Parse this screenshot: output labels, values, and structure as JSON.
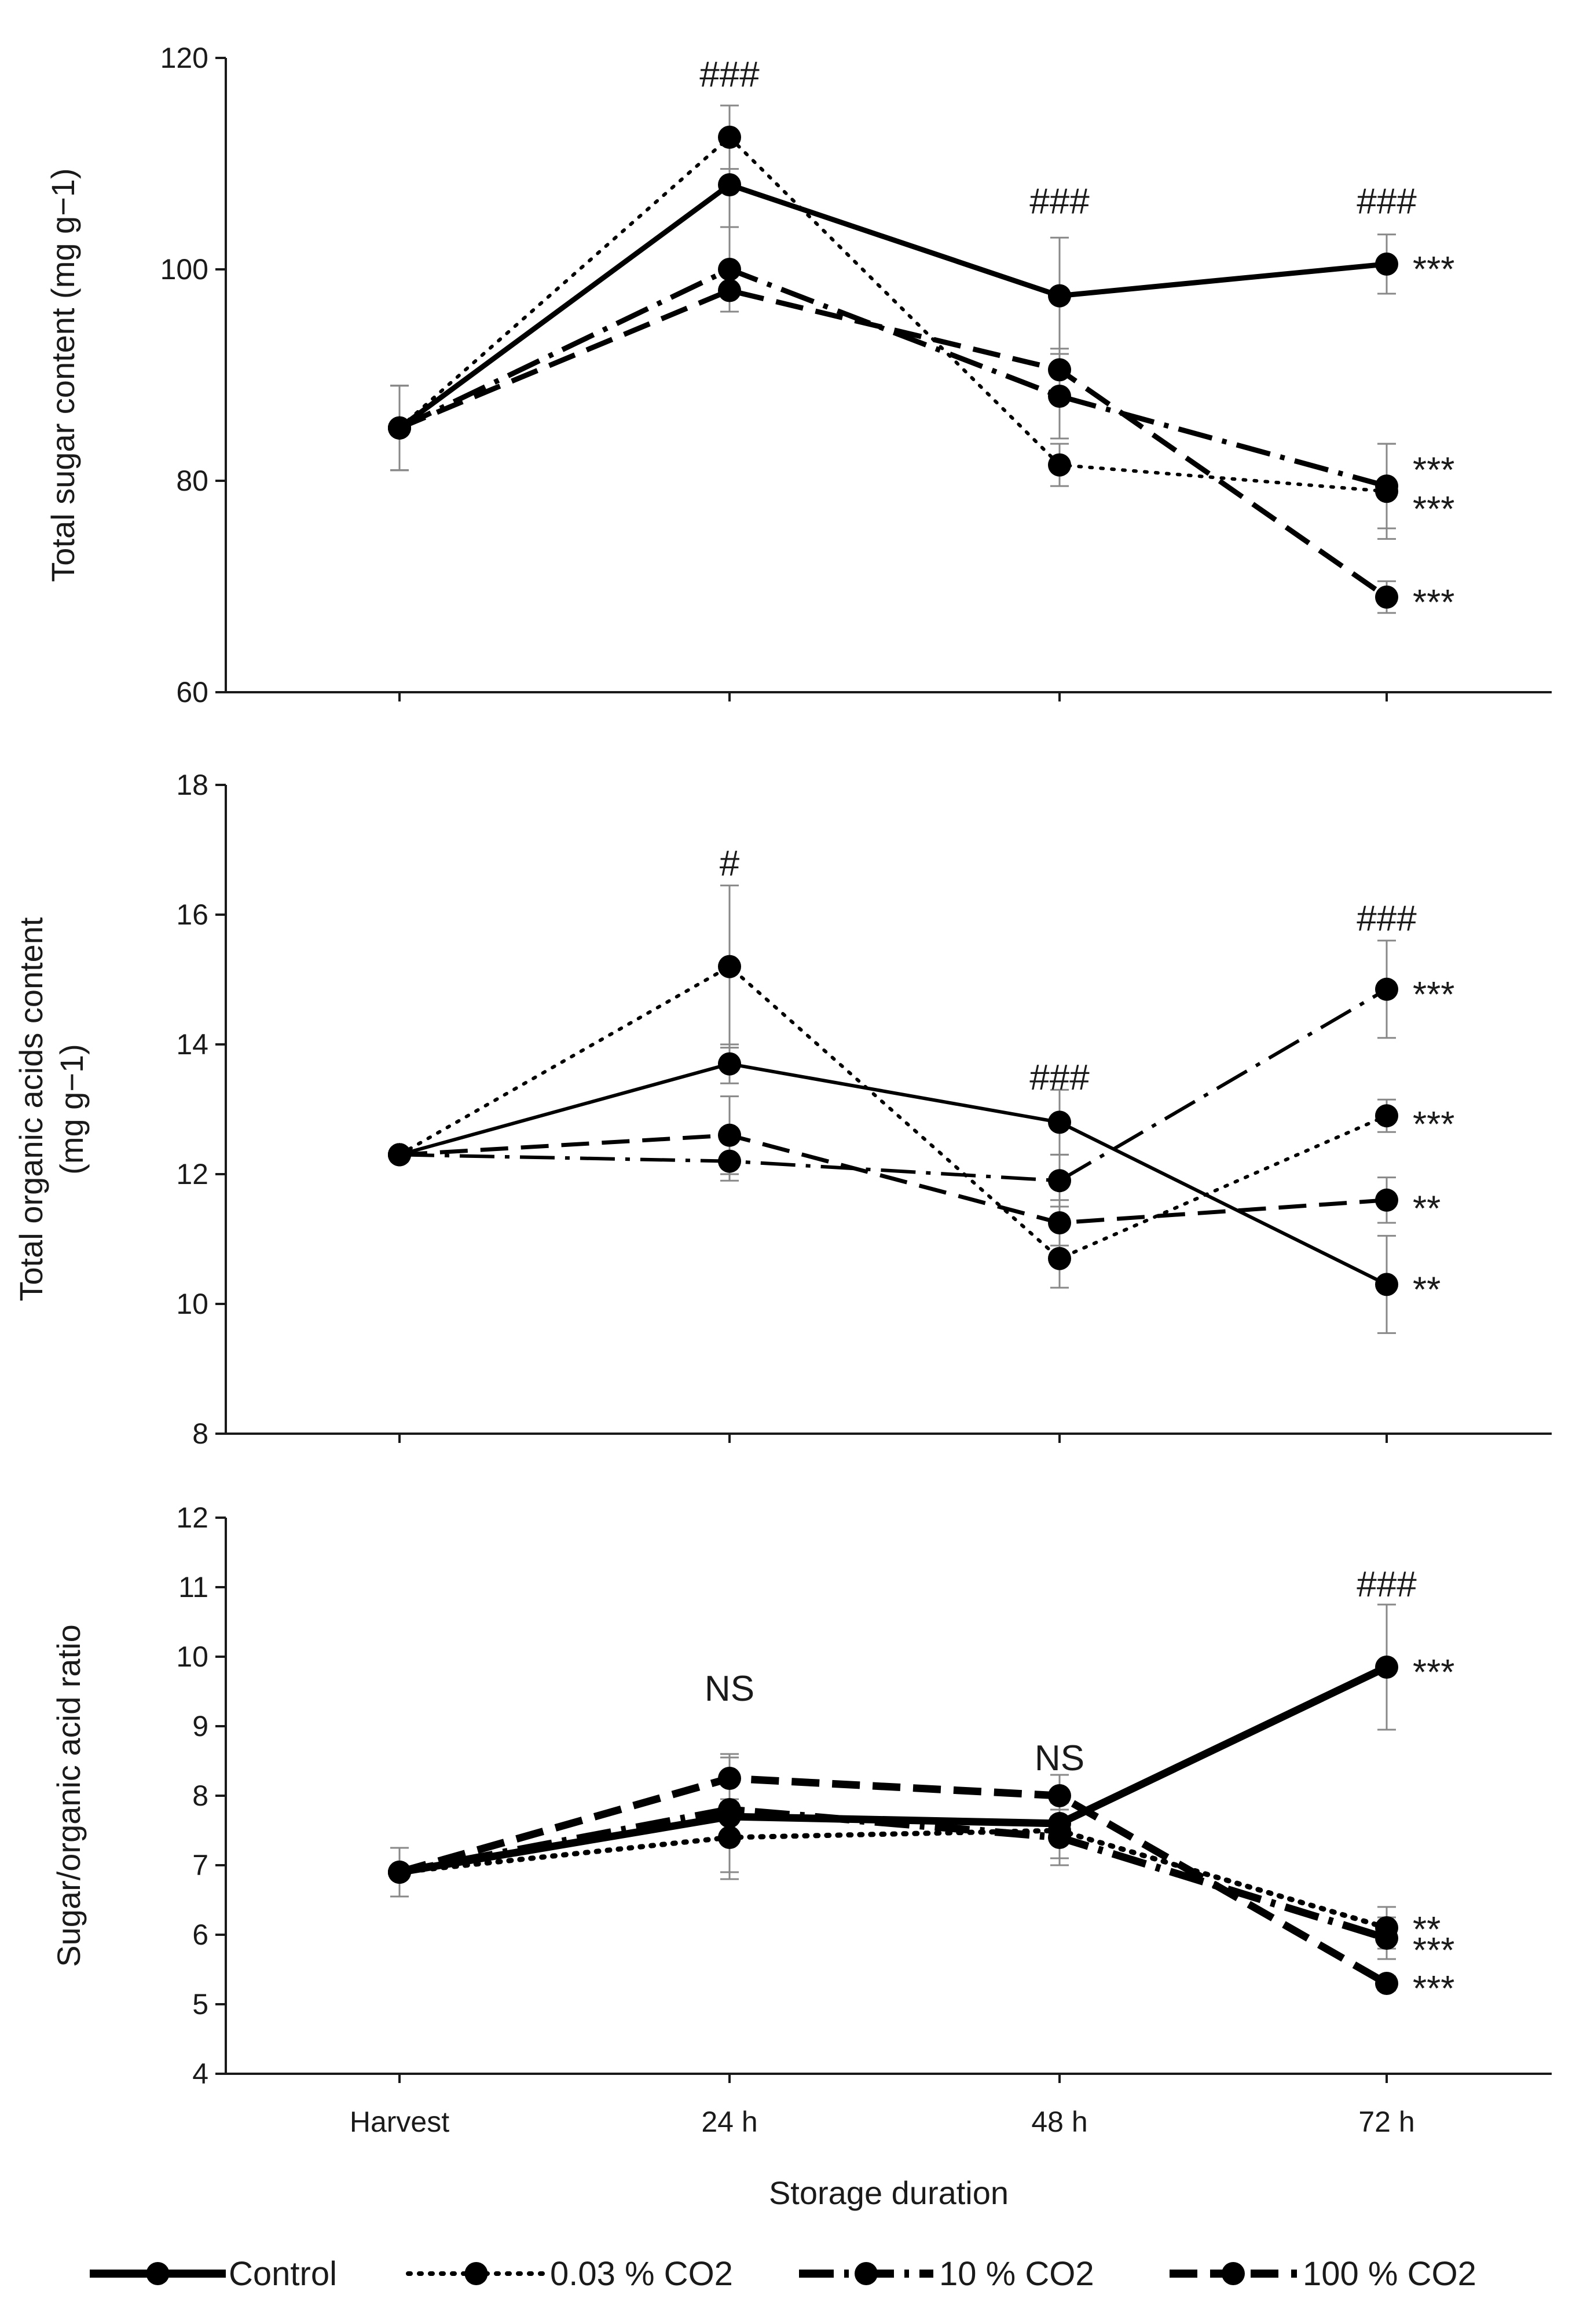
{
  "chart_data": [
    {
      "type": "line",
      "id": "sugar",
      "ylabel_lines": [
        "Total sugar content (mg g−1)"
      ],
      "ylim": [
        60,
        120
      ],
      "yticks": [
        60,
        80,
        100,
        120
      ],
      "categories": [
        "Harvest",
        "24 h",
        "48 h",
        "72 h"
      ],
      "series": [
        {
          "name": "Control",
          "values": [
            85,
            108,
            97.5,
            100.5
          ],
          "errors": [
            4,
            4,
            5.5,
            2.8
          ]
        },
        {
          "name": "0.03 % CO2",
          "values": [
            85,
            112.5,
            81.5,
            79
          ],
          "errors": [
            4,
            3,
            2,
            4.5
          ]
        },
        {
          "name": "10 % CO2",
          "values": [
            85,
            100,
            88,
            79.5
          ],
          "errors": [
            4,
            4,
            4,
            4
          ]
        },
        {
          "name": "100 % CO2",
          "values": [
            85,
            98,
            90.5,
            69
          ],
          "errors": [
            4,
            2,
            2,
            1.5
          ]
        }
      ],
      "top_annotations": [
        {
          "category": "24 h",
          "text": "###",
          "y": 118.5
        },
        {
          "category": "48 h",
          "text": "###",
          "y": 106.5
        },
        {
          "category": "72 h",
          "text": "###",
          "y": 106.5
        }
      ],
      "side_annotations": [
        {
          "text": "***",
          "y": 100.5
        },
        {
          "text": "***",
          "y": 81.5
        },
        {
          "text": "***",
          "y": 77.8
        },
        {
          "text": "***",
          "y": 69
        }
      ]
    },
    {
      "type": "line",
      "id": "acids",
      "ylabel_lines": [
        "Total organic acids content",
        "(mg g−1)"
      ],
      "ylim": [
        8,
        18
      ],
      "yticks": [
        8,
        10,
        12,
        14,
        16,
        18
      ],
      "categories": [
        "Harvest",
        "24 h",
        "48 h",
        "72 h"
      ],
      "series": [
        {
          "name": "Control",
          "values": [
            12.3,
            13.7,
            12.8,
            10.3
          ],
          "errors": [
            0.1,
            0.3,
            0.5,
            0.75
          ]
        },
        {
          "name": "0.03 % CO2",
          "values": [
            12.3,
            15.2,
            10.7,
            12.9
          ],
          "errors": [
            0.1,
            1.25,
            0.45,
            0.25
          ]
        },
        {
          "name": "10 % CO2",
          "values": [
            12.3,
            12.2,
            11.9,
            14.85
          ],
          "errors": [
            0.1,
            0.3,
            0.4,
            0.75
          ]
        },
        {
          "name": "100 % CO2",
          "values": [
            12.3,
            12.6,
            11.25,
            11.6
          ],
          "errors": [
            0.1,
            0.6,
            0.35,
            0.35
          ]
        }
      ],
      "top_annotations": [
        {
          "category": "24 h",
          "text": "#",
          "y": 16.8
        },
        {
          "category": "48 h",
          "text": "###",
          "y": 13.5
        },
        {
          "category": "72 h",
          "text": "###",
          "y": 15.95
        }
      ],
      "side_annotations": [
        {
          "text": "***",
          "y": 14.85
        },
        {
          "text": "***",
          "y": 12.85
        },
        {
          "text": "**",
          "y": 11.55
        },
        {
          "text": "**",
          "y": 10.3
        }
      ]
    },
    {
      "type": "line",
      "id": "ratio",
      "ylabel_lines": [
        "Sugar/organic acid ratio"
      ],
      "ylim": [
        4,
        12
      ],
      "yticks": [
        4,
        5,
        6,
        7,
        8,
        9,
        10,
        11,
        12
      ],
      "categories": [
        "Harvest",
        "24 h",
        "48 h",
        "72 h"
      ],
      "xlabel": "Storage duration",
      "series": [
        {
          "name": "Control",
          "values": [
            6.9,
            7.7,
            7.6,
            9.85
          ],
          "errors": [
            0.35,
            0.9,
            0.2,
            0.9
          ]
        },
        {
          "name": "0.03 % CO2",
          "values": [
            6.9,
            7.4,
            7.5,
            6.1
          ],
          "errors": [
            0.35,
            0.5,
            0.4,
            0.3
          ]
        },
        {
          "name": "10 % CO2",
          "values": [
            6.9,
            7.8,
            7.4,
            5.95
          ],
          "errors": [
            0.35,
            0.4,
            0.4,
            0.3
          ]
        },
        {
          "name": "100 % CO2",
          "values": [
            6.9,
            8.25,
            8.0,
            5.3
          ],
          "errors": [
            0.35,
            0.3,
            0.3,
            0.1
          ]
        }
      ],
      "top_annotations": [
        {
          "category": "24 h",
          "text": "NS",
          "y": 9.55
        },
        {
          "category": "48 h",
          "text": "NS",
          "y": 8.55
        },
        {
          "category": "72 h",
          "text": "###",
          "y": 11.05
        }
      ],
      "side_annotations": [
        {
          "text": "***",
          "y": 9.85
        },
        {
          "text": "**",
          "y": 6.15
        },
        {
          "text": "***",
          "y": 5.85
        },
        {
          "text": "***",
          "y": 5.3
        }
      ]
    }
  ],
  "legend": [
    {
      "label": "Control",
      "style": "solid"
    },
    {
      "label": "0.03 % CO2",
      "style": "dotted"
    },
    {
      "label": "10 % CO2",
      "style": "dashdot"
    },
    {
      "label": "100 % CO2",
      "style": "dashed"
    }
  ],
  "colors": {
    "line": "#000000",
    "axis": "#1a1a1a",
    "error": "#888888"
  }
}
